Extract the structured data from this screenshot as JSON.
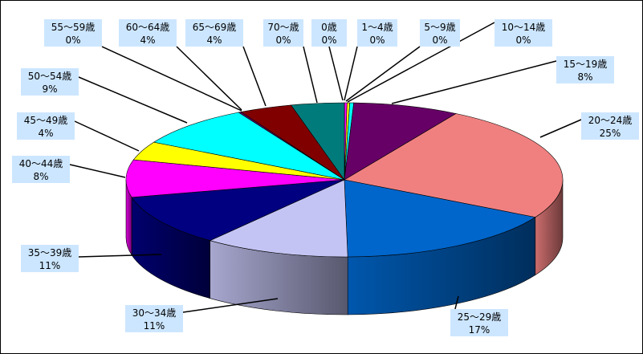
{
  "chart_data": {
    "type": "pie",
    "title": "",
    "three_d": true,
    "slices": [
      {
        "label": "0歳",
        "percent_label": "0%",
        "value": 0,
        "color": "#000080"
      },
      {
        "label": "1～4歳",
        "percent_label": "0%",
        "value": 0.2,
        "color": "#ff00ff"
      },
      {
        "label": "5～9歳",
        "percent_label": "0%",
        "value": 0.2,
        "color": "#ffff00"
      },
      {
        "label": "10～14歳",
        "percent_label": "0%",
        "value": 0.3,
        "color": "#00ffff"
      },
      {
        "label": "15～19歳",
        "percent_label": "8%",
        "value": 8,
        "color": "#660066"
      },
      {
        "label": "20～24歳",
        "percent_label": "25%",
        "value": 25,
        "color": "#f08080"
      },
      {
        "label": "25～29歳",
        "percent_label": "17%",
        "value": 17,
        "color": "#0066cc"
      },
      {
        "label": "30～34歳",
        "percent_label": "11%",
        "value": 11,
        "color": "#c4c4f4"
      },
      {
        "label": "35～39歳",
        "percent_label": "11%",
        "value": 11,
        "color": "#000080"
      },
      {
        "label": "40～44歳",
        "percent_label": "8%",
        "value": 8,
        "color": "#ff00ff"
      },
      {
        "label": "45～49歳",
        "percent_label": "4%",
        "value": 4,
        "color": "#ffff00"
      },
      {
        "label": "50～54歳",
        "percent_label": "9%",
        "value": 9,
        "color": "#00ffff"
      },
      {
        "label": "55～59歳",
        "percent_label": "0%",
        "value": 0.2,
        "color": "#660066"
      },
      {
        "label": "60～64歳",
        "percent_label": "4%",
        "value": 4,
        "color": "#800000"
      },
      {
        "label": "65～69歳",
        "percent_label": "4%",
        "value": 4,
        "color": "#007b7b"
      },
      {
        "label": "70～歳",
        "percent_label": "0%",
        "value": 0,
        "color": "#0066cc"
      }
    ],
    "legend": "none",
    "label_background": "#cce6ff"
  }
}
